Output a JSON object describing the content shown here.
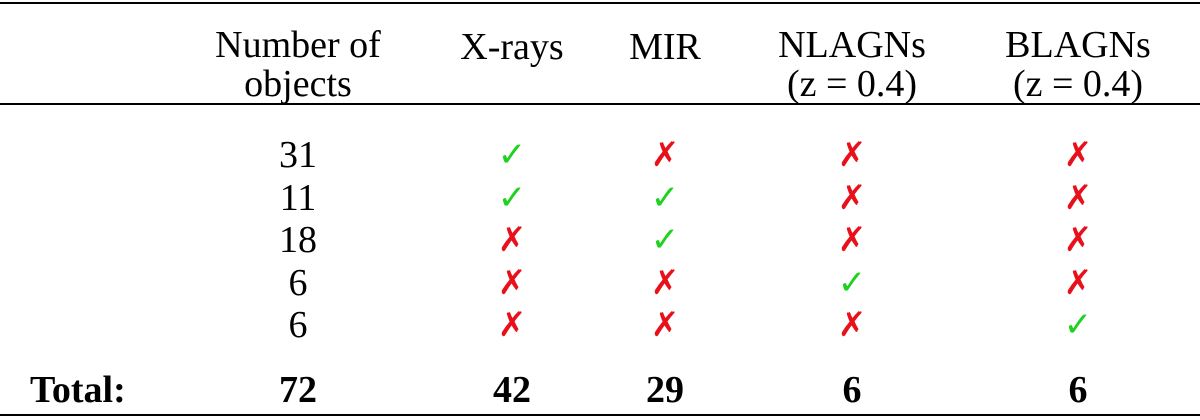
{
  "table": {
    "header": [
      [],
      [
        "Number of",
        "objects"
      ],
      [
        "X-rays"
      ],
      [
        "MIR"
      ],
      [
        "NLAGNs",
        "(z = 0.4)"
      ],
      [
        "BLAGNs",
        "(z = 0.4)"
      ]
    ],
    "rows": [
      [
        31,
        {
          "text": "✓",
          "color": "#1ed21e"
        },
        {
          "text": "✗",
          "color": "#e8101a"
        },
        {
          "text": "✗",
          "color": "#e8101a"
        },
        {
          "text": "✗",
          "color": "#e8101a"
        }
      ],
      [
        11,
        {
          "text": "✓",
          "color": "#1ed21e"
        },
        {
          "text": "✓",
          "color": "#1ed21e"
        },
        {
          "text": "✗",
          "color": "#e8101a"
        },
        {
          "text": "✗",
          "color": "#e8101a"
        }
      ],
      [
        18,
        {
          "text": "✗",
          "color": "#e8101a"
        },
        {
          "text": "✓",
          "color": "#1ed21e"
        },
        {
          "text": "✗",
          "color": "#e8101a"
        },
        {
          "text": "✗",
          "color": "#e8101a"
        }
      ],
      [
        6,
        {
          "text": "✗",
          "color": "#e8101a"
        },
        {
          "text": "✗",
          "color": "#e8101a"
        },
        {
          "text": "✓",
          "color": "#1ed21e"
        },
        {
          "text": "✗",
          "color": "#e8101a"
        }
      ],
      [
        6,
        {
          "text": "✗",
          "color": "#e8101a"
        },
        {
          "text": "✗",
          "color": "#e8101a"
        },
        {
          "text": "✗",
          "color": "#e8101a"
        },
        {
          "text": "✓",
          "color": "#1ed21e"
        }
      ]
    ],
    "total": {
      "label": "Total:",
      "values": [
        72,
        42,
        29,
        6,
        6
      ]
    }
  }
}
